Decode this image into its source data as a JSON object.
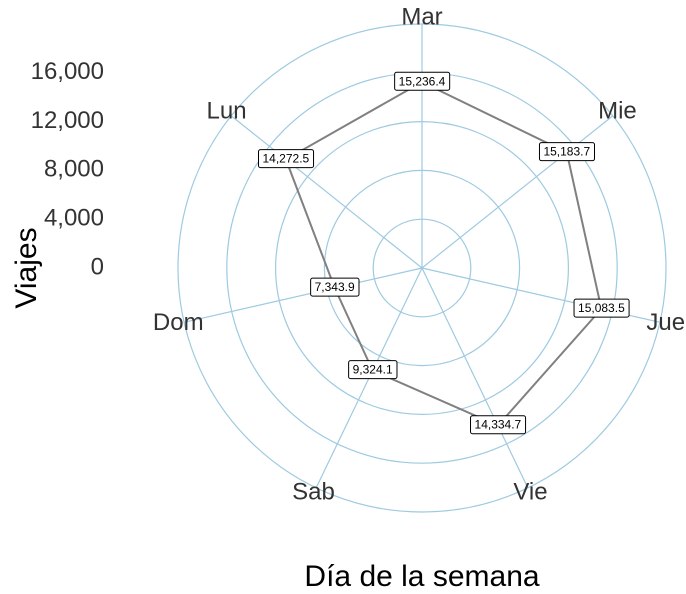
{
  "chart_data": {
    "type": "radar",
    "x_label": "Día de la semana",
    "y_label": "Viajes",
    "categories": [
      "Mar",
      "Mie",
      "Jue",
      "Vie",
      "Sab",
      "Dom",
      "Lun"
    ],
    "values": [
      15236.4,
      15183.7,
      15083.5,
      14334.7,
      9324.1,
      7343.9,
      14272.5
    ],
    "value_labels": [
      "15,236.4",
      "15,183.7",
      "15,083.5",
      "14,334.7",
      "9,324.1",
      "7,343.9",
      "14,272.5"
    ],
    "color": "#808080",
    "grid_color": "#9ecae1",
    "ylim": [
      0,
      20000
    ],
    "yticks": [
      0,
      {
        "value": 4000,
        "label": "4,000"
      },
      {
        "value": 8000,
        "label": "8,000"
      },
      {
        "value": 12000,
        "label": "12,000"
      },
      {
        "value": 16000,
        "label": "16,000"
      }
    ],
    "grid": true
  }
}
